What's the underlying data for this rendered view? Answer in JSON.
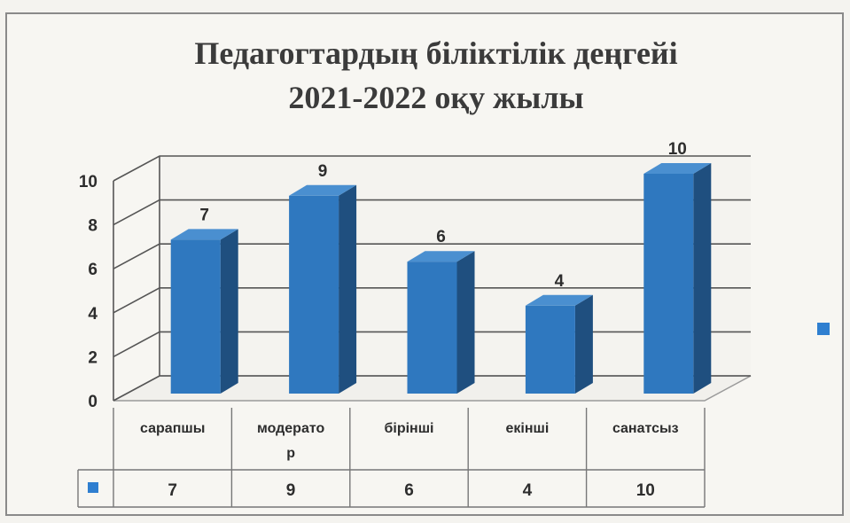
{
  "chart_data": {
    "type": "bar",
    "title_lines": [
      "Педагогтардың біліктілік деңгейі",
      "2021-2022 оқу жылы"
    ],
    "categories": [
      [
        "сарапшы"
      ],
      [
        "модерато",
        "р"
      ],
      [
        "бірінші"
      ],
      [
        "екінші"
      ],
      [
        "санатсыз"
      ]
    ],
    "values": [
      7,
      9,
      6,
      4,
      10
    ],
    "ylim": [
      0,
      10
    ],
    "yticks": [
      "0",
      "2",
      "4",
      "6",
      "8",
      "10"
    ],
    "grid": true,
    "three_d": true,
    "data_table": true,
    "legend": "right",
    "colors": {
      "bar_front": "#2f78bf",
      "bar_side": "#1f4f7f",
      "bar_top": "#4a8fd0",
      "legend_marker": "#2f7fd0"
    }
  }
}
